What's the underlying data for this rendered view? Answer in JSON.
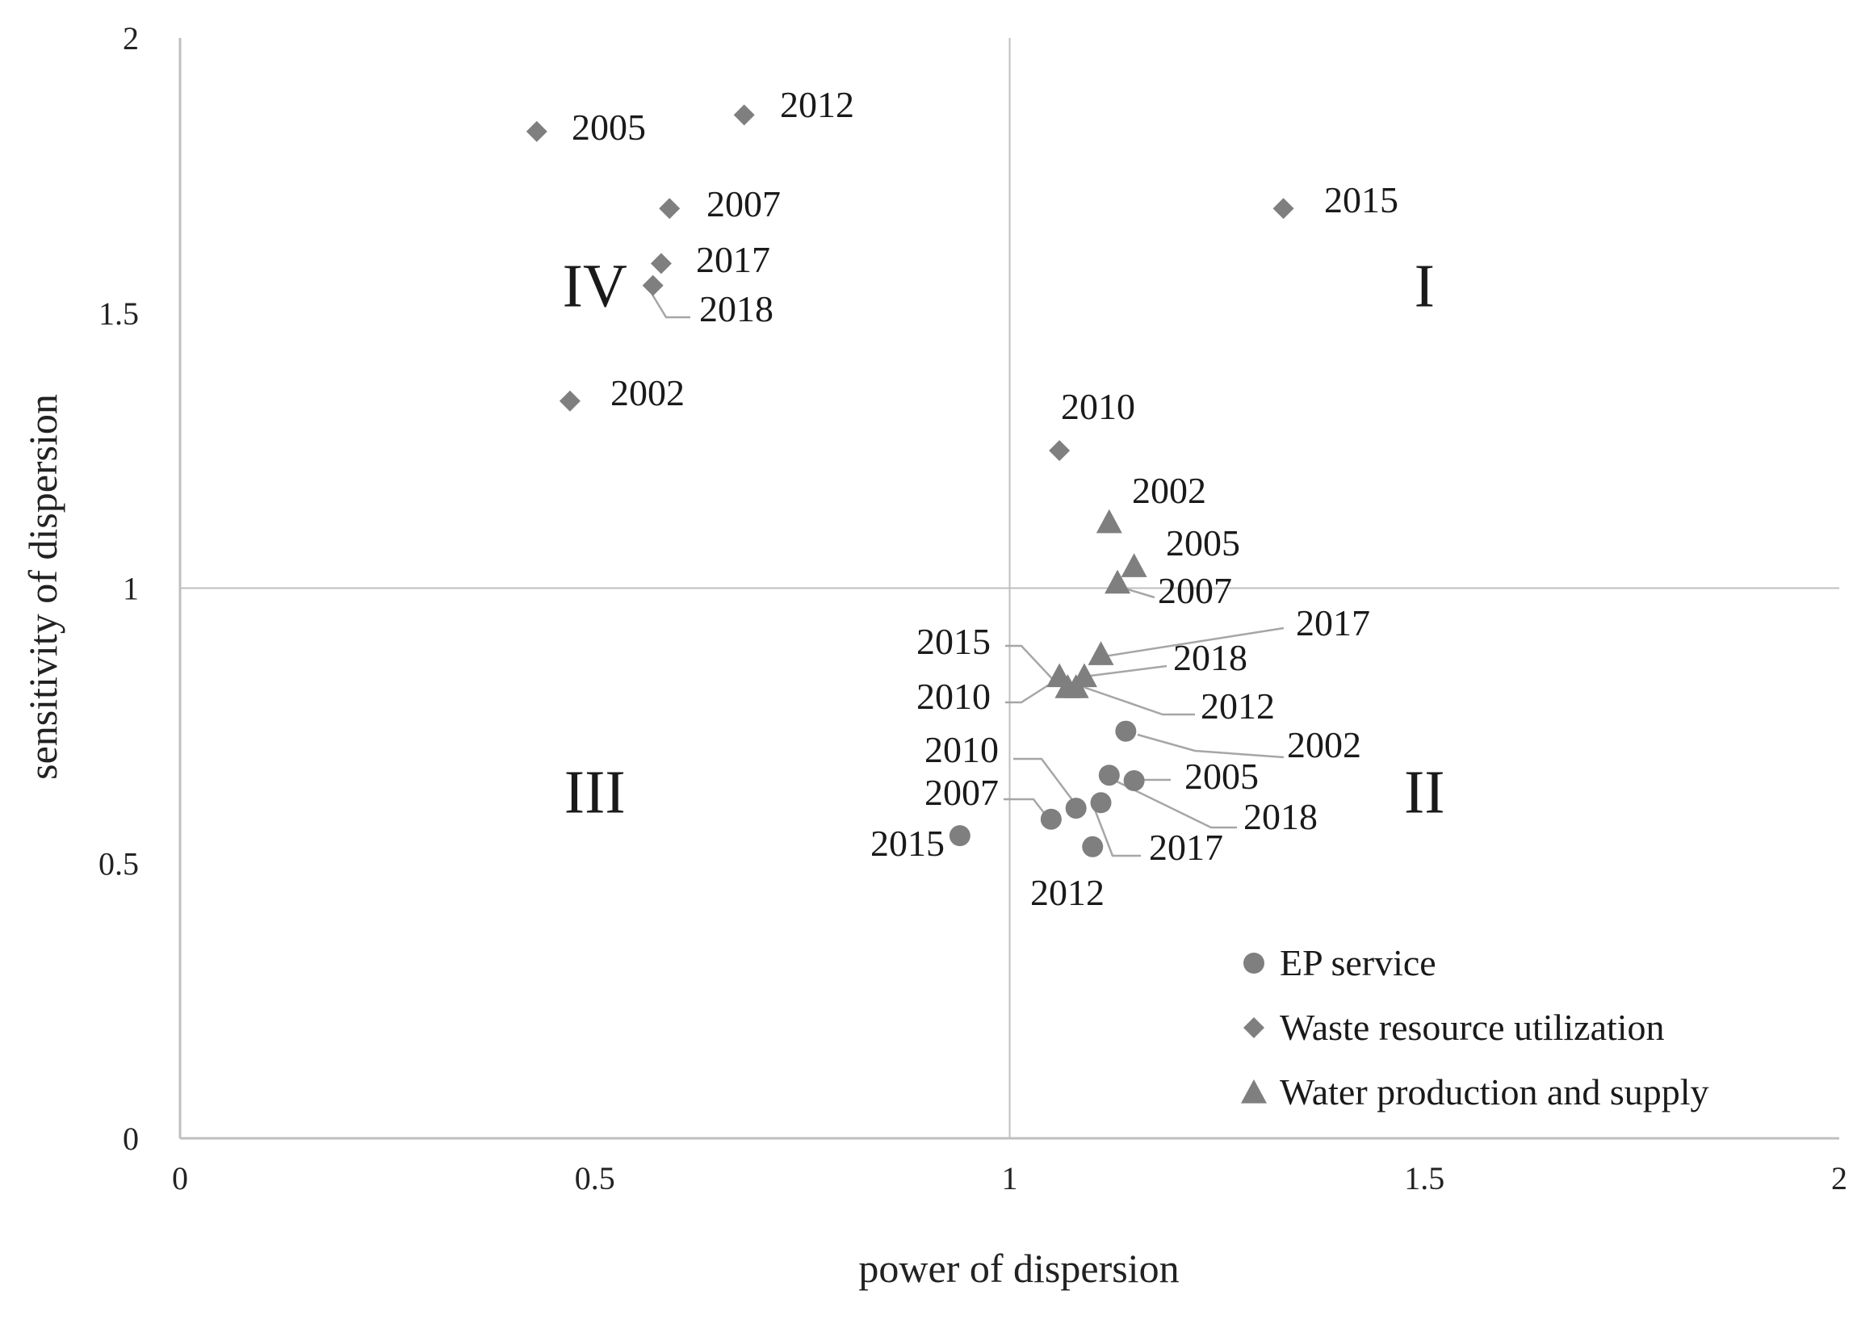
{
  "chart_data": {
    "type": "scatter",
    "xlabel": "power of dispersion",
    "ylabel": "sensitivity of dispersion",
    "xlim": [
      0,
      2
    ],
    "ylim": [
      0,
      2
    ],
    "x_ticks": [
      "0",
      "0.5",
      "1",
      "1.5",
      "2"
    ],
    "y_ticks": [
      "0",
      "0.5",
      "1",
      "1.5",
      "2"
    ],
    "reference_lines": {
      "x": 1,
      "y": 1
    },
    "grid": false,
    "legend_position": "bottom-right",
    "quadrants": [
      {
        "label": "I",
        "x": 1.5,
        "y": 1.55
      },
      {
        "label": "II",
        "x": 1.5,
        "y": 0.63
      },
      {
        "label": "III",
        "x": 0.5,
        "y": 0.63
      },
      {
        "label": "IV",
        "x": 0.5,
        "y": 1.55
      }
    ],
    "series": [
      {
        "name": "EP service",
        "marker": "circle",
        "color": "#7f7f7f",
        "points": [
          {
            "label": "2002",
            "x": 1.14,
            "y": 0.74
          },
          {
            "label": "2005",
            "x": 1.15,
            "y": 0.65
          },
          {
            "label": "2007",
            "x": 1.05,
            "y": 0.58
          },
          {
            "label": "2010",
            "x": 1.08,
            "y": 0.6
          },
          {
            "label": "2012",
            "x": 1.1,
            "y": 0.53
          },
          {
            "label": "2015",
            "x": 0.94,
            "y": 0.55
          },
          {
            "label": "2017",
            "x": 1.11,
            "y": 0.61
          },
          {
            "label": "2018",
            "x": 1.12,
            "y": 0.66
          }
        ]
      },
      {
        "name": "Waste resource utilization",
        "marker": "diamond",
        "color": "#7f7f7f",
        "points": [
          {
            "label": "2002",
            "x": 0.47,
            "y": 1.34
          },
          {
            "label": "2005",
            "x": 0.43,
            "y": 1.83
          },
          {
            "label": "2007",
            "x": 0.59,
            "y": 1.69
          },
          {
            "label": "2010",
            "x": 1.06,
            "y": 1.25
          },
          {
            "label": "2012",
            "x": 0.68,
            "y": 1.86
          },
          {
            "label": "2015",
            "x": 1.33,
            "y": 1.69
          },
          {
            "label": "2017",
            "x": 0.58,
            "y": 1.59
          },
          {
            "label": "2018",
            "x": 0.57,
            "y": 1.55
          }
        ]
      },
      {
        "name": "Water production and supply",
        "marker": "triangle",
        "color": "#7f7f7f",
        "points": [
          {
            "label": "2002",
            "x": 1.12,
            "y": 1.12
          },
          {
            "label": "2005",
            "x": 1.15,
            "y": 1.04
          },
          {
            "label": "2007",
            "x": 1.13,
            "y": 1.01
          },
          {
            "label": "2010",
            "x": 1.07,
            "y": 0.82
          },
          {
            "label": "2012",
            "x": 1.08,
            "y": 0.82
          },
          {
            "label": "2015",
            "x": 1.06,
            "y": 0.84
          },
          {
            "label": "2017",
            "x": 1.11,
            "y": 0.88
          },
          {
            "label": "2018",
            "x": 1.09,
            "y": 0.84
          }
        ]
      }
    ]
  }
}
